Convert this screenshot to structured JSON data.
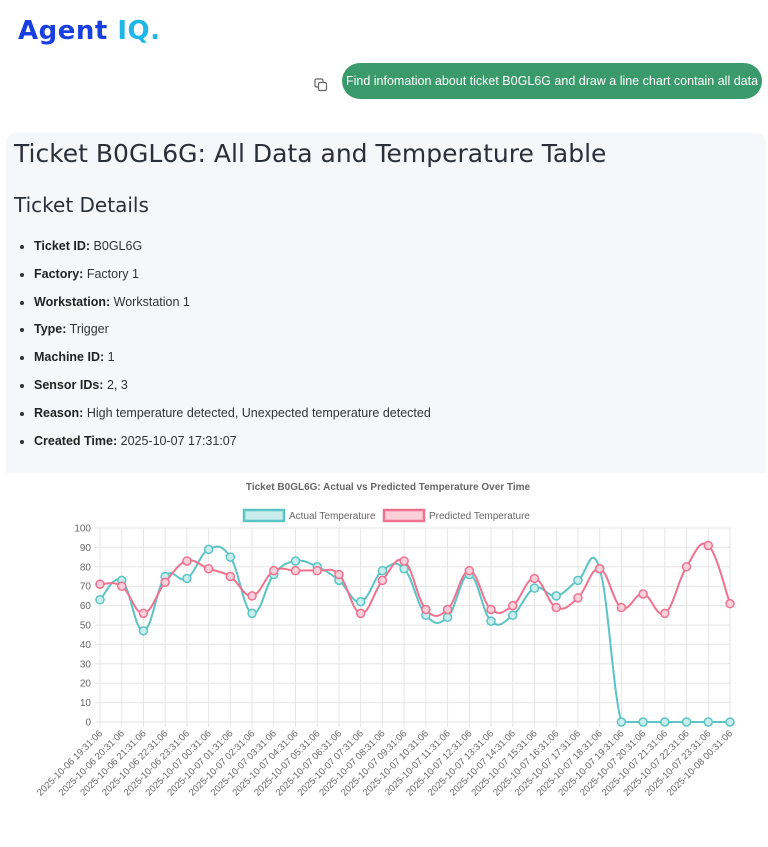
{
  "app": {
    "logo_main": "Agent ",
    "logo_accent": "IQ.",
    "colors": {
      "brand": "#1a3fe0",
      "brand_accent": "#1fb6e8",
      "prompt_bubble": "#3b9a6b"
    }
  },
  "prompt": {
    "text": "Find infomation about ticket B0GL6G and draw a line chart contain all data",
    "copy_icon": "copy-icon"
  },
  "response": {
    "title": "Ticket B0GL6G: All Data and Temperature Table",
    "subtitle": "Ticket Details",
    "details": [
      {
        "label": "Ticket ID:",
        "value": "B0GL6G"
      },
      {
        "label": "Factory:",
        "value": "Factory 1"
      },
      {
        "label": "Workstation:",
        "value": "Workstation 1"
      },
      {
        "label": "Type:",
        "value": "Trigger"
      },
      {
        "label": "Machine ID:",
        "value": "1"
      },
      {
        "label": "Sensor IDs:",
        "value": "2, 3"
      },
      {
        "label": "Reason:",
        "value": "High temperature detected, Unexpected temperature detected"
      },
      {
        "label": "Created Time:",
        "value": "2025-10-07 17:31:07"
      }
    ]
  },
  "chart_data": {
    "type": "line",
    "title": "Ticket B0GL6G: Actual vs Predicted Temperature Over Time",
    "legend_position": "top",
    "grid": true,
    "ylim": [
      0,
      100
    ],
    "y_ticks": [
      0,
      10,
      20,
      30,
      40,
      50,
      60,
      70,
      80,
      90,
      100
    ],
    "x": [
      "2025-10-06 19:31:06",
      "2025-10-06 20:31:06",
      "2025-10-06 21:31:06",
      "2025-10-06 22:31:06",
      "2025-10-06 23:31:06",
      "2025-10-07 00:31:06",
      "2025-10-07 01:31:06",
      "2025-10-07 02:31:06",
      "2025-10-07 03:31:06",
      "2025-10-07 04:31:06",
      "2025-10-07 05:31:06",
      "2025-10-07 06:31:06",
      "2025-10-07 07:31:06",
      "2025-10-07 08:31:06",
      "2025-10-07 09:31:06",
      "2025-10-07 10:31:06",
      "2025-10-07 11:31:06",
      "2025-10-07 12:31:06",
      "2025-10-07 13:31:06",
      "2025-10-07 14:31:06",
      "2025-10-07 15:31:06",
      "2025-10-07 16:31:06",
      "2025-10-07 17:31:06",
      "2025-10-07 18:31:06",
      "2025-10-07 19:31:06",
      "2025-10-07 20:31:06",
      "2025-10-07 21:31:06",
      "2025-10-07 22:31:06",
      "2025-10-07 23:31:06",
      "2025-10-08 00:31:06"
    ],
    "series": [
      {
        "name": "Actual Temperature",
        "color": "#5cc4c4",
        "fill": "#c9ecec",
        "values": [
          63,
          73,
          47,
          75,
          74,
          89,
          85,
          56,
          76,
          83,
          80,
          73,
          62,
          78,
          79,
          55,
          54,
          76,
          52,
          55,
          69,
          65,
          73,
          79,
          0,
          0,
          0,
          0,
          0,
          0
        ]
      },
      {
        "name": "Predicted Temperature",
        "color": "#f0728f",
        "fill": "#fbd0da",
        "values": [
          71,
          70,
          56,
          72,
          83,
          79,
          75,
          65,
          78,
          78,
          78,
          76,
          56,
          73,
          83,
          58,
          58,
          78,
          58,
          60,
          74,
          59,
          64,
          79,
          59,
          66,
          56,
          80,
          91,
          61
        ]
      }
    ]
  }
}
